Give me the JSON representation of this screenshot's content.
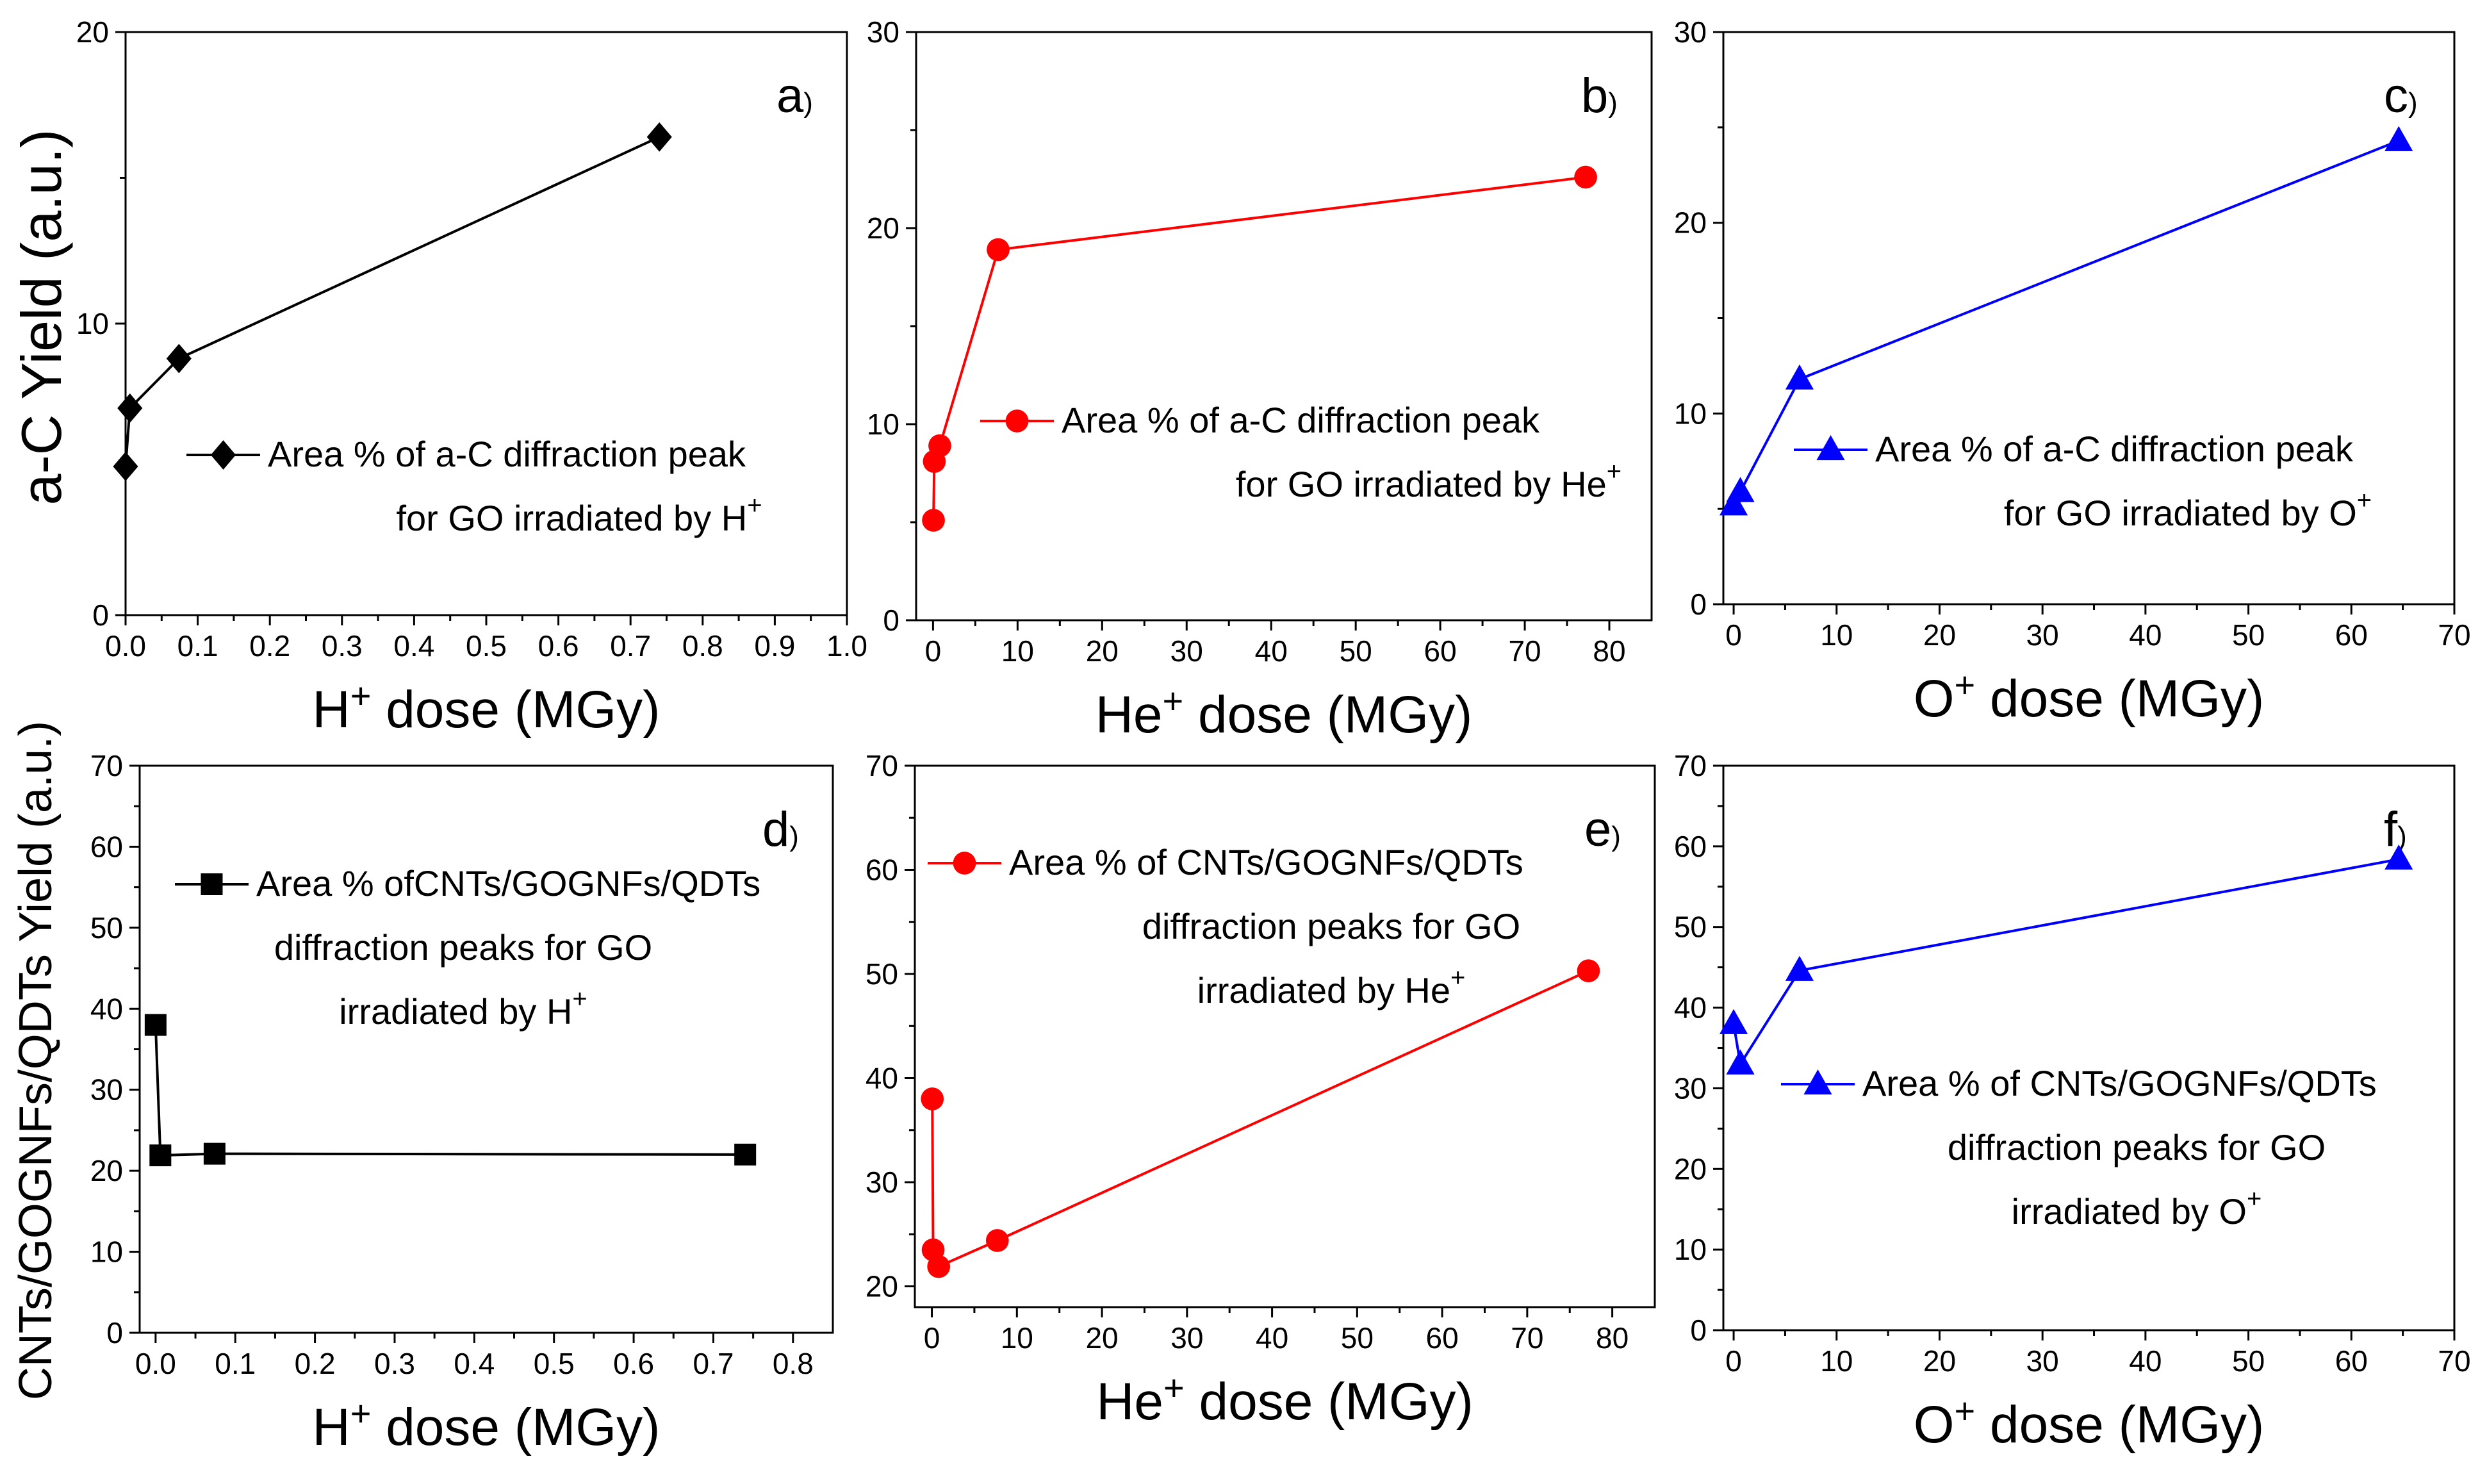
{
  "figure": {
    "ylabel_top": "a-C Yield (a.u.)",
    "ylabel_bottom": "CNTs/GOGNFs/QDTs Yield (a.u.)"
  },
  "chart_data": [
    {
      "id": "a",
      "type": "line",
      "panel_label": "a",
      "label_suffix": ")",
      "xlabel": {
        "ion": "H",
        "sup": "+",
        "rest": " dose (MGy)"
      },
      "xlim": [
        0,
        1.0
      ],
      "ylim": [
        0,
        20
      ],
      "xticks": [
        "0.0",
        "0.1",
        "0.2",
        "0.3",
        "0.4",
        "0.5",
        "0.6",
        "0.7",
        "0.8",
        "0.9",
        "1.0"
      ],
      "yticks": [
        "0",
        "10",
        "20"
      ],
      "xtick_values": [
        0,
        0.1,
        0.2,
        0.3,
        0.4,
        0.5,
        0.6,
        0.7,
        0.8,
        0.9,
        1.0
      ],
      "ytick_values": [
        0,
        10,
        20
      ],
      "color": "#000000",
      "marker": "diamond",
      "x": [
        0.0,
        0.006,
        0.074,
        0.74
      ],
      "y": [
        5.1,
        7.1,
        8.8,
        16.4
      ],
      "legend": {
        "line1": "Area % of a-C diffraction peak",
        "line2": "for GO irradiated by ",
        "ion": "H",
        "sup": "+"
      }
    },
    {
      "id": "b",
      "type": "line",
      "panel_label": "b",
      "label_suffix": ")",
      "xlabel": {
        "ion": "He",
        "sup": "+",
        "rest": " dose (MGy)"
      },
      "xlim": [
        -2,
        85
      ],
      "ylim": [
        0,
        30
      ],
      "xticks": [
        "0",
        "10",
        "20",
        "30",
        "40",
        "50",
        "60",
        "70",
        "80"
      ],
      "yticks": [
        "0",
        "10",
        "20",
        "30"
      ],
      "xtick_values": [
        0,
        10,
        20,
        30,
        40,
        50,
        60,
        70,
        80
      ],
      "ytick_values": [
        0,
        10,
        20,
        30
      ],
      "color": "#ff0000",
      "marker": "circle",
      "x": [
        0.05,
        0.15,
        0.8,
        7.7,
        77.2
      ],
      "y": [
        5.1,
        8.1,
        8.9,
        18.9,
        22.6
      ],
      "legend": {
        "line1": "Area % of a-C diffraction peak",
        "line2": "for GO irradiated by ",
        "ion": "He",
        "sup": "+"
      }
    },
    {
      "id": "c",
      "type": "line",
      "panel_label": "c",
      "label_suffix": ")",
      "xlabel": {
        "ion": "O",
        "sup": "+",
        "rest": " dose (MGy)"
      },
      "xlim": [
        -1,
        70
      ],
      "ylim": [
        0,
        30
      ],
      "xticks": [
        "0",
        "10",
        "20",
        "30",
        "40",
        "50",
        "60",
        "70"
      ],
      "yticks": [
        "0",
        "10",
        "20",
        "30"
      ],
      "xtick_values": [
        0,
        10,
        20,
        30,
        40,
        50,
        60,
        70
      ],
      "ytick_values": [
        0,
        10,
        20,
        30
      ],
      "color": "#0000ff",
      "marker": "triangle",
      "x": [
        0.0,
        0.65,
        6.4,
        64.6
      ],
      "y": [
        5.2,
        5.9,
        11.8,
        24.3
      ],
      "legend": {
        "line1": "Area % of a-C diffraction peak",
        "line2": "for GO irradiated by ",
        "ion": "O",
        "sup": "+"
      }
    },
    {
      "id": "d",
      "type": "line",
      "panel_label": "d",
      "label_suffix": ")",
      "xlabel": {
        "ion": "H",
        "sup": "+",
        "rest": " dose (MGy)"
      },
      "xlim": [
        -0.02,
        0.85
      ],
      "ylim": [
        0,
        70
      ],
      "xticks": [
        "0.0",
        "0.1",
        "0.2",
        "0.3",
        "0.4",
        "0.5",
        "0.6",
        "0.7",
        "0.8"
      ],
      "yticks": [
        "0",
        "10",
        "20",
        "30",
        "40",
        "50",
        "60",
        "70"
      ],
      "xtick_values": [
        0,
        0.1,
        0.2,
        0.3,
        0.4,
        0.5,
        0.6,
        0.7,
        0.8
      ],
      "ytick_values": [
        0,
        10,
        20,
        30,
        40,
        50,
        60,
        70
      ],
      "color": "#000000",
      "marker": "square",
      "x": [
        0.0,
        0.006,
        0.074,
        0.74
      ],
      "y": [
        38.0,
        21.9,
        22.1,
        22.0
      ],
      "legend": {
        "line1": "Area % ofCNTs/GOGNFs/QDTs",
        "line2": "diffraction peaks for GO",
        "line3": "irradiated by ",
        "ion": "H",
        "sup": "+"
      }
    },
    {
      "id": "e",
      "type": "line",
      "panel_label": "e",
      "label_suffix": ")",
      "xlabel": {
        "ion": "He",
        "sup": "+",
        "rest": " dose (MGy)"
      },
      "xlim": [
        -2,
        85
      ],
      "ylim": [
        18,
        70
      ],
      "xticks": [
        "0",
        "10",
        "20",
        "30",
        "40",
        "50",
        "60",
        "70",
        "80"
      ],
      "yticks": [
        "20",
        "30",
        "40",
        "50",
        "60",
        "70"
      ],
      "xtick_values": [
        0,
        10,
        20,
        30,
        40,
        50,
        60,
        70,
        80
      ],
      "ytick_values": [
        20,
        30,
        40,
        50,
        60,
        70
      ],
      "color": "#ff0000",
      "marker": "circle",
      "x": [
        0.05,
        0.15,
        0.8,
        7.7,
        77.2
      ],
      "y": [
        38.0,
        23.5,
        21.9,
        24.4,
        50.3
      ],
      "legend": {
        "line1": "Area % of CNTs/GOGNFs/QDTs",
        "line2": "diffraction peaks for GO",
        "line3": "irradiated by ",
        "ion": "He",
        "sup": "+"
      }
    },
    {
      "id": "f",
      "type": "line",
      "panel_label": "f",
      "label_suffix": ")",
      "xlabel": {
        "ion": "O",
        "sup": "+",
        "rest": " dose (MGy)"
      },
      "xlim": [
        -1,
        70
      ],
      "ylim": [
        0,
        70
      ],
      "xticks": [
        "0",
        "10",
        "20",
        "30",
        "40",
        "50",
        "60",
        "70"
      ],
      "yticks": [
        "0",
        "10",
        "20",
        "30",
        "40",
        "50",
        "60",
        "70"
      ],
      "xtick_values": [
        0,
        10,
        20,
        30,
        40,
        50,
        60,
        70
      ],
      "ytick_values": [
        0,
        10,
        20,
        30,
        40,
        50,
        60,
        70
      ],
      "color": "#0000ff",
      "marker": "triangle",
      "x": [
        0.0,
        0.65,
        6.4,
        64.6
      ],
      "y": [
        38.0,
        33.0,
        44.6,
        58.4
      ],
      "legend": {
        "line1": "Area % of CNTs/GOGNFs/QDTs",
        "line2": "diffraction peaks for GO",
        "line3": "irradiated by ",
        "ion": "O",
        "sup": "+"
      }
    }
  ]
}
